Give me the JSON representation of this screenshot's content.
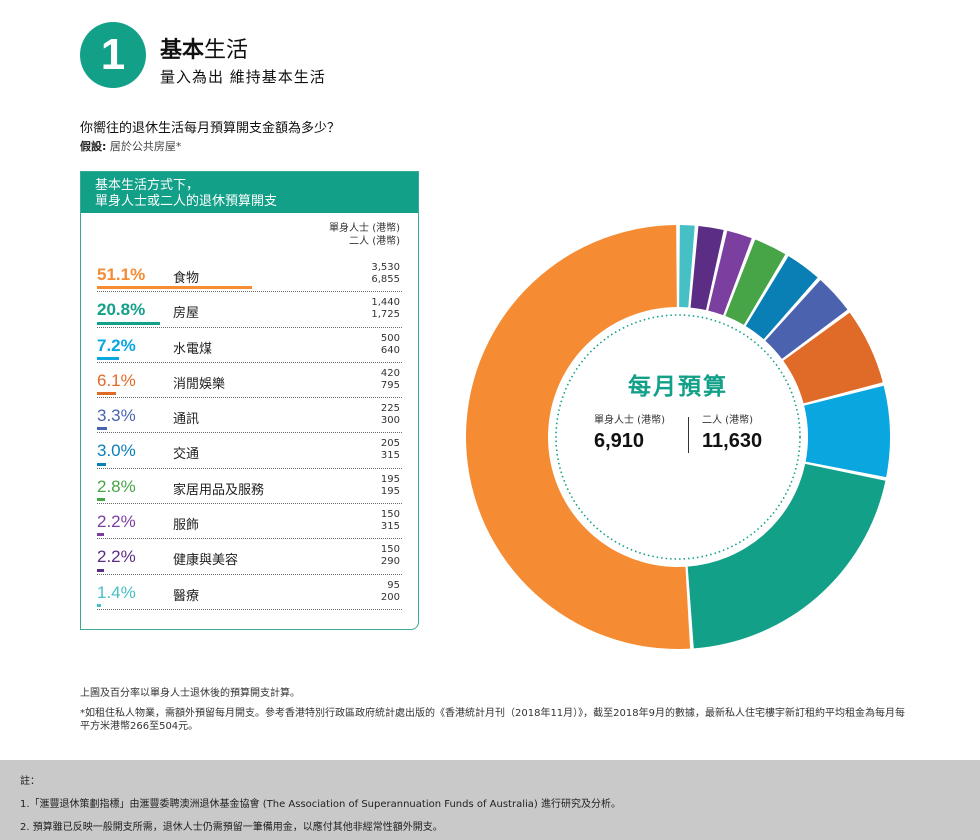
{
  "header": {
    "number": "1",
    "title_bold": "基本",
    "title_rest": "生活",
    "subtitle": "量入為出 維持基本生活"
  },
  "question": "你嚮往的退休生活每月預算開支金額為多少？",
  "assumption": {
    "label": "假設:",
    "text": "居於公共房屋*"
  },
  "panel": {
    "title_line1": "基本生活方式下，",
    "title_line2": "單身人士或二人的退休預算開支",
    "col_single": "單身人士 (港幣)",
    "col_couple": "二人 (港幣)"
  },
  "chart_data": {
    "type": "pie",
    "subtype": "donut",
    "title": "每月預算",
    "series_headers": [
      "單身人士 (港幣)",
      "二人 (港幣)"
    ],
    "categories": [
      "食物",
      "房屋",
      "水電煤",
      "消閒娛樂",
      "通訊",
      "交通",
      "家居用品及服務",
      "服飾",
      "健康與美容",
      "醫療"
    ],
    "percent_labels": [
      "51.1%",
      "20.8%",
      "7.2%",
      "6.1%",
      "3.3%",
      "3.0%",
      "2.8%",
      "2.2%",
      "2.2%",
      "1.4%"
    ],
    "percent_values": [
      51.1,
      20.8,
      7.2,
      6.1,
      3.3,
      3.0,
      2.8,
      2.2,
      2.2,
      1.4
    ],
    "single": [
      "3,530",
      "1,440",
      "500",
      "420",
      "225",
      "205",
      "195",
      "150",
      "150",
      "95"
    ],
    "couple": [
      "6,855",
      "1,725",
      "640",
      "795",
      "300",
      "315",
      "195",
      "315",
      "290",
      "200"
    ],
    "colors": [
      "#f58b33",
      "#13a089",
      "#0aa6e0",
      "#e06a28",
      "#4b63ae",
      "#0a7fb6",
      "#47a447",
      "#7b3fa0",
      "#5b2d84",
      "#46c0c4"
    ],
    "totals": {
      "single_label": "單身人士 (港幣)",
      "single_value": "6,910",
      "couple_label": "二人 (港幣)",
      "couple_value": "11,630"
    }
  },
  "notes": {
    "note1": "上圖及百分率以單身人士退休後的預算開支計算。",
    "note2": "*如租住私人物業，需額外預留每月開支。參考香港特別行政區政府統計處出版的《香港統計月刊（2018年11月）》，截至2018年9月的數據，最新私人住宅樓宇新訂租約平均租金為每月每平方米港幣266至504元。"
  },
  "footer": {
    "heading": "註：",
    "line1": "1.「滙豐退休策劃指標」由滙豐委聘澳洲退休基金協會 (The Association of Superannuation Funds of Australia) 進行研究及分析。",
    "line2": "2. 預算雖已反映一般開支所需，退休人士仍需預留一筆備用金，以應付其他非經常性額外開支。"
  }
}
